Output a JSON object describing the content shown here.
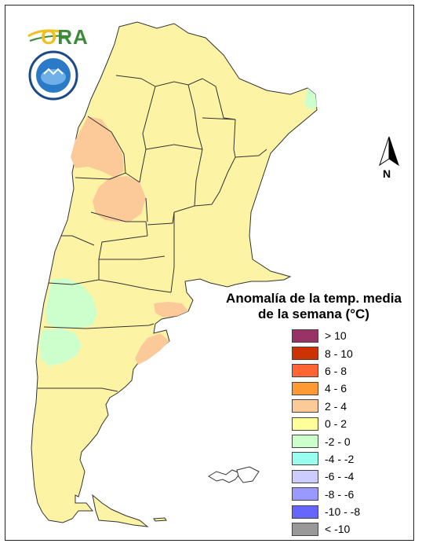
{
  "logo": {
    "text": "ORA",
    "o_letter": "O",
    "rest": "RA"
  },
  "seal": {
    "name": "emblem-icon"
  },
  "north_arrow": {
    "label": "N"
  },
  "legend": {
    "title_line1": "Anomalía de la temp. media",
    "title_line2": "de la semana (°C)",
    "items": [
      {
        "label": "> 10",
        "color": "#993366"
      },
      {
        "label": "8 - 10",
        "color": "#cc3300"
      },
      {
        "label": "6 - 8",
        "color": "#ff6633"
      },
      {
        "label": "4 - 6",
        "color": "#ff9933"
      },
      {
        "label": "2 - 4",
        "color": "#fcc999"
      },
      {
        "label": "0 - 2",
        "color": "#ffff99"
      },
      {
        "label": "-2 - 0",
        "color": "#ccffcc"
      },
      {
        "label": "-4 - -2",
        "color": "#99ffee"
      },
      {
        "label": "-6 - -4",
        "color": "#ccccff"
      },
      {
        "label": "-8 - -6",
        "color": "#9999ff"
      },
      {
        "label": "-10 - -8",
        "color": "#6666ff"
      },
      {
        "label": "< -10",
        "color": "#999999"
      }
    ]
  },
  "colors": {
    "land": "#fcf4a4",
    "warm": "#fcc999",
    "cool": "#ccffcc",
    "border": "#333333"
  }
}
